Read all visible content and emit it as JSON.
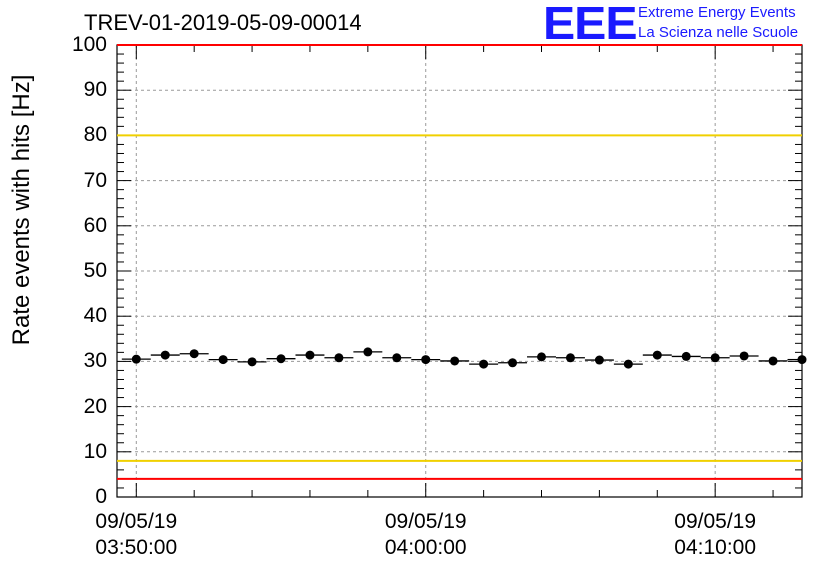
{
  "chart_data": {
    "type": "scatter",
    "title": "TREV-01-2019-05-09-00014",
    "ylabel": "Rate events with hits [Hz]",
    "xlabel": "",
    "ylim": [
      0,
      100
    ],
    "x_axis_type": "time",
    "x_range": [
      "2019-05-09 03:49:20",
      "2019-05-09 04:13:00"
    ],
    "x_ticks": [
      {
        "date": "09/05/19",
        "time": "03:50:00"
      },
      {
        "date": "09/05/19",
        "time": "04:00:00"
      },
      {
        "date": "09/05/19",
        "time": "04:10:00"
      }
    ],
    "y_ticks": [
      "0",
      "10",
      "20",
      "30",
      "40",
      "50",
      "60",
      "70",
      "80",
      "90",
      "100"
    ],
    "grid": true,
    "reference_lines": [
      {
        "y": 100,
        "color": "#ff0000"
      },
      {
        "y": 80,
        "color": "#f0d000"
      },
      {
        "y": 8,
        "color": "#f0d000"
      },
      {
        "y": 4,
        "color": "#ff0000"
      }
    ],
    "series": [
      {
        "marker_color": "#000000",
        "points": [
          {
            "x": "2019-05-09 03:50:00",
            "y": 30.5
          },
          {
            "x": "2019-05-09 03:51:00",
            "y": 31.4
          },
          {
            "x": "2019-05-09 03:52:00",
            "y": 31.7
          },
          {
            "x": "2019-05-09 03:53:00",
            "y": 30.4
          },
          {
            "x": "2019-05-09 03:54:00",
            "y": 29.9
          },
          {
            "x": "2019-05-09 03:55:00",
            "y": 30.6
          },
          {
            "x": "2019-05-09 03:56:00",
            "y": 31.4
          },
          {
            "x": "2019-05-09 03:57:00",
            "y": 30.8
          },
          {
            "x": "2019-05-09 03:58:00",
            "y": 32.1
          },
          {
            "x": "2019-05-09 03:59:00",
            "y": 30.8
          },
          {
            "x": "2019-05-09 04:00:00",
            "y": 30.4
          },
          {
            "x": "2019-05-09 04:01:00",
            "y": 30.1
          },
          {
            "x": "2019-05-09 04:02:00",
            "y": 29.4
          },
          {
            "x": "2019-05-09 04:03:00",
            "y": 29.7
          },
          {
            "x": "2019-05-09 04:04:00",
            "y": 31.0
          },
          {
            "x": "2019-05-09 04:05:00",
            "y": 30.8
          },
          {
            "x": "2019-05-09 04:06:00",
            "y": 30.3
          },
          {
            "x": "2019-05-09 04:07:00",
            "y": 29.4
          },
          {
            "x": "2019-05-09 04:08:00",
            "y": 31.4
          },
          {
            "x": "2019-05-09 04:09:00",
            "y": 31.1
          },
          {
            "x": "2019-05-09 04:10:00",
            "y": 30.8
          },
          {
            "x": "2019-05-09 04:11:00",
            "y": 31.2
          },
          {
            "x": "2019-05-09 04:12:00",
            "y": 30.1
          },
          {
            "x": "2019-05-09 04:13:00",
            "y": 30.4
          }
        ]
      }
    ]
  },
  "logo": {
    "text": "EEE",
    "line1": "Extreme Energy Events",
    "line2": "La Scienza nelle Scuole",
    "color": "#1a1aff"
  }
}
